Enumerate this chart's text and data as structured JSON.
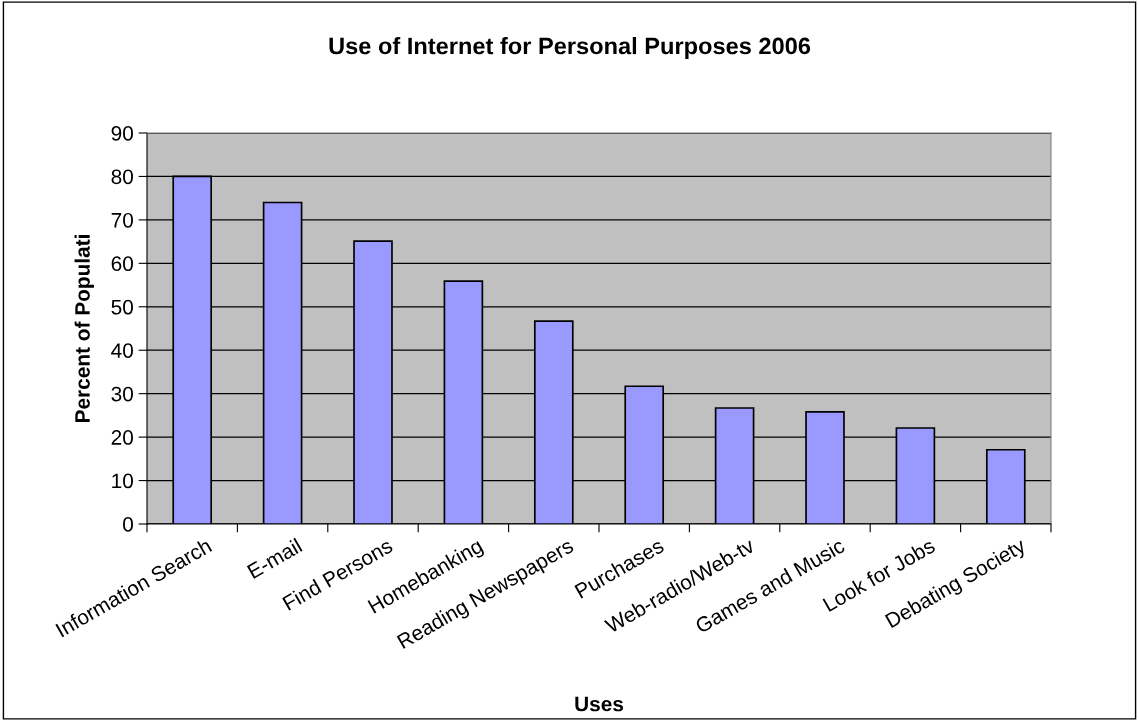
{
  "chart_data": {
    "type": "bar",
    "title": "Use of Internet for Personal Purposes 2006",
    "xlabel": "Uses",
    "ylabel": "Percent of Populati",
    "categories": [
      "Information Search",
      "E-mail",
      "Find Persons",
      "Homebanking",
      "Reading Newspapers",
      "Purchases",
      "Web-radio/Web-tv",
      "Games and Music",
      "Look for Jobs",
      "Debating Society"
    ],
    "values": [
      80,
      74,
      65.1,
      55.9,
      46.7,
      31.7,
      26.7,
      25.8,
      22.1,
      17.1
    ],
    "color": "#9999ff",
    "ylim": [
      0,
      90
    ],
    "yticks": [
      0,
      10,
      20,
      30,
      40,
      50,
      60,
      70,
      80,
      90
    ],
    "grid": "y"
  }
}
